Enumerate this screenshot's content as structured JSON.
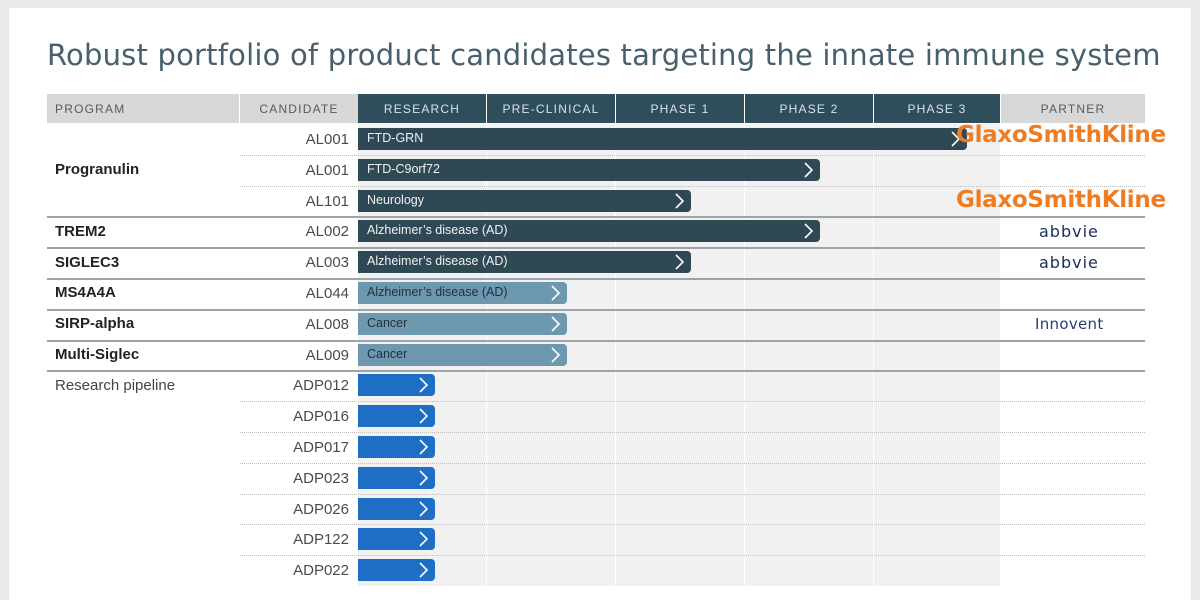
{
  "title": "Robust portfolio of product candidates targeting the innate immune system",
  "headers": {
    "program": "PROGRAM",
    "candidate": "CANDIDATE",
    "phases": [
      "RESEARCH",
      "PRE-CLINICAL",
      "PHASE 1",
      "PHASE 2",
      "PHASE 3"
    ],
    "partner": "PARTNER"
  },
  "colors": {
    "header_gray": "#d8d8d8",
    "header_dark": "#2f4e5b",
    "bar_dark": "#2e4954",
    "bar_light": "#6d98b0",
    "bar_blue": "#1d6ec4",
    "gsk_orange": "#f07c22"
  },
  "programs": [
    {
      "name": "Progranulin",
      "style": "bold",
      "rows": [
        0,
        1,
        2
      ]
    },
    {
      "name": "TREM2",
      "style": "bold",
      "rows": [
        3
      ]
    },
    {
      "name": "SIGLEC3",
      "style": "bold",
      "rows": [
        4
      ]
    },
    {
      "name": "MS4A4A",
      "style": "bold",
      "rows": [
        5
      ]
    },
    {
      "name": "SIRP-alpha",
      "style": "bold",
      "rows": [
        6
      ]
    },
    {
      "name": "Multi-Siglec",
      "style": "bold",
      "rows": [
        7
      ]
    },
    {
      "name": "Research pipeline",
      "style": "normal",
      "rows": [
        8,
        9,
        10,
        11,
        12,
        13,
        14
      ]
    }
  ],
  "rows": [
    {
      "candidate": "AL001",
      "indication": "FTD-GRN",
      "progress_phase": 4.72,
      "style": "dark",
      "partner": "GlaxoSmithKline",
      "partner_style": "gsk"
    },
    {
      "candidate": "AL001",
      "indication": "FTD-C9orf72",
      "progress_phase": 3.58,
      "style": "dark",
      "partner": "",
      "partner_style": ""
    },
    {
      "candidate": "AL101",
      "indication": "Neurology",
      "progress_phase": 2.58,
      "style": "dark",
      "partner": "GlaxoSmithKline",
      "partner_style": "gsk"
    },
    {
      "candidate": "AL002",
      "indication": "Alzheimer’s disease (AD)",
      "progress_phase": 3.58,
      "style": "dark",
      "partner": "abbvie",
      "partner_style": "abbvie"
    },
    {
      "candidate": "AL003",
      "indication": "Alzheimer’s disease (AD)",
      "progress_phase": 2.58,
      "style": "dark",
      "partner": "abbvie",
      "partner_style": "abbvie"
    },
    {
      "candidate": "AL044",
      "indication": "Alzheimer’s disease (AD)",
      "progress_phase": 1.62,
      "style": "light",
      "partner": "",
      "partner_style": ""
    },
    {
      "candidate": "AL008",
      "indication": "Cancer",
      "progress_phase": 1.62,
      "style": "light",
      "partner": "Innovent",
      "partner_style": "innovent"
    },
    {
      "candidate": "AL009",
      "indication": "Cancer",
      "progress_phase": 1.62,
      "style": "light",
      "partner": "",
      "partner_style": ""
    },
    {
      "candidate": "ADP012",
      "indication": "",
      "progress_phase": 0.6,
      "style": "blue",
      "partner": "",
      "partner_style": ""
    },
    {
      "candidate": "ADP016",
      "indication": "",
      "progress_phase": 0.6,
      "style": "blue",
      "partner": "",
      "partner_style": ""
    },
    {
      "candidate": "ADP017",
      "indication": "",
      "progress_phase": 0.6,
      "style": "blue",
      "partner": "",
      "partner_style": ""
    },
    {
      "candidate": "ADP023",
      "indication": "",
      "progress_phase": 0.6,
      "style": "blue",
      "partner": "",
      "partner_style": ""
    },
    {
      "candidate": "ADP026",
      "indication": "",
      "progress_phase": 0.6,
      "style": "blue",
      "partner": "",
      "partner_style": ""
    },
    {
      "candidate": "ADP122",
      "indication": "",
      "progress_phase": 0.6,
      "style": "blue",
      "partner": "",
      "partner_style": ""
    },
    {
      "candidate": "ADP022",
      "indication": "",
      "progress_phase": 0.6,
      "style": "blue",
      "partner": "",
      "partner_style": ""
    }
  ]
}
